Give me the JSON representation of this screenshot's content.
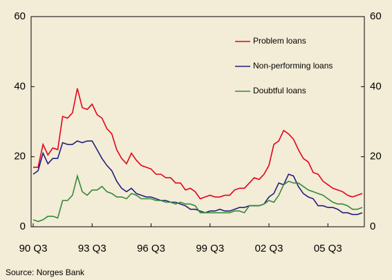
{
  "chart_data": {
    "type": "line",
    "source": "Source: Norges Bank",
    "categories": [
      "90 Q3",
      null,
      null,
      null,
      null,
      null,
      null,
      null,
      null,
      null,
      null,
      null,
      "93 Q3",
      null,
      null,
      null,
      null,
      null,
      null,
      null,
      null,
      null,
      null,
      null,
      "96 Q3",
      null,
      null,
      null,
      null,
      null,
      null,
      null,
      null,
      null,
      null,
      null,
      "99 Q3",
      null,
      null,
      null,
      null,
      null,
      null,
      null,
      null,
      null,
      null,
      null,
      "02 Q3",
      null,
      null,
      null,
      null,
      null,
      null,
      null,
      null,
      null,
      null,
      null,
      "05 Q3",
      null,
      null,
      null,
      null,
      null,
      null,
      null
    ],
    "series": [
      {
        "name": "Problem loans",
        "color": "#e3001b",
        "values": [
          17,
          17,
          23.5,
          20.5,
          22.5,
          22,
          31.5,
          31,
          32.5,
          39.5,
          34,
          33.5,
          35,
          32,
          31,
          28,
          26.5,
          22,
          19.5,
          18,
          21,
          19,
          17.5,
          17,
          16.5,
          15,
          15,
          14,
          14,
          12.5,
          12.5,
          10.5,
          11,
          10,
          8,
          8.5,
          9,
          8.5,
          8.5,
          9,
          9,
          10.5,
          11,
          11,
          12.5,
          14,
          13.5,
          15,
          17.5,
          23.5,
          24.5,
          27.5,
          26.5,
          25,
          22,
          19.5,
          18.5,
          15.5,
          15,
          13,
          12,
          11,
          10.5,
          10,
          9,
          8.5,
          9,
          9.5
        ]
      },
      {
        "name": "Non-performing loans",
        "color": "#1e1e7a",
        "values": [
          15,
          16,
          21,
          18,
          19.5,
          19.5,
          24,
          23.5,
          23.5,
          24.5,
          24,
          24.5,
          24.5,
          22,
          19.5,
          17.5,
          16,
          13,
          11,
          10,
          11,
          9.5,
          9,
          8.5,
          8.5,
          8,
          7.5,
          7.5,
          7,
          7,
          6.5,
          6,
          5,
          5,
          4.5,
          4,
          4.5,
          4.5,
          5,
          4.5,
          4.5,
          5,
          5.5,
          5.5,
          6,
          6,
          6,
          6.5,
          8.5,
          9.5,
          12.5,
          12,
          15,
          14.5,
          11.5,
          9.5,
          8.5,
          8,
          6,
          6,
          5.5,
          5.5,
          5,
          4,
          4,
          3.5,
          3.5,
          4
        ]
      },
      {
        "name": "Doubtful loans",
        "color": "#2f8a3a",
        "values": [
          2,
          1.5,
          2,
          3,
          3,
          2.5,
          7.5,
          7.5,
          9,
          14.5,
          10,
          9,
          10.5,
          10.5,
          11.5,
          10,
          9.5,
          8.5,
          8.5,
          8,
          9.5,
          9,
          8,
          8,
          8,
          7.5,
          7.5,
          7,
          7,
          6.5,
          7,
          6.5,
          6.5,
          6,
          4,
          4,
          4,
          4,
          4,
          4,
          4,
          4.5,
          4.5,
          4,
          6,
          6,
          6,
          6.5,
          7.5,
          7,
          9,
          12,
          13,
          12.5,
          12.5,
          11.5,
          10.5,
          10,
          9.5,
          9,
          8,
          7,
          6.5,
          6.5,
          6,
          5,
          5,
          5.5
        ]
      }
    ],
    "ylim": [
      0,
      60
    ],
    "yticks": [
      0,
      20,
      40,
      60
    ],
    "y2lim": [
      0,
      60
    ],
    "y2ticks": [
      0,
      20,
      40,
      60
    ],
    "legend": "upper right"
  }
}
